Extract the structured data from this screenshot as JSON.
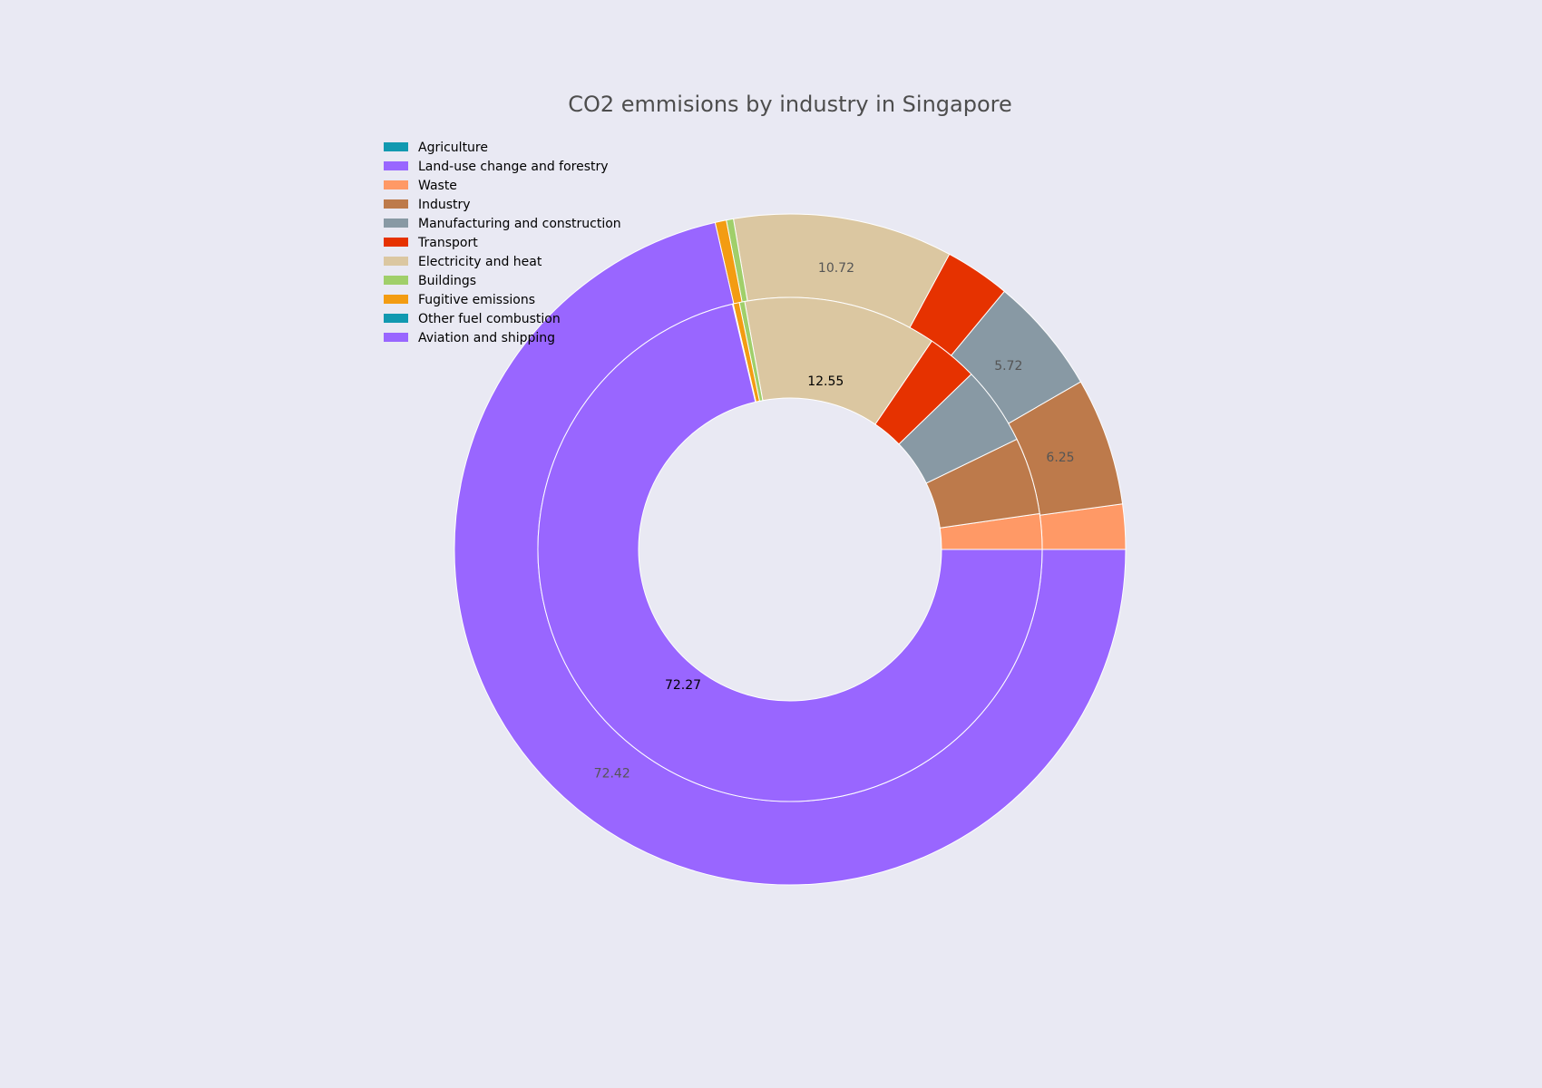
{
  "chart_data": {
    "type": "pie",
    "title": "CO2 emmisions by industry in Singapore",
    "legend_placement": "top-left",
    "legend": [
      {
        "label": "Agriculture",
        "color": "#1199b0"
      },
      {
        "label": "Land-use change and forestry",
        "color": "#9966ff"
      },
      {
        "label": "Waste",
        "color": "#ff9966"
      },
      {
        "label": "Industry",
        "color": "#bd7a4b"
      },
      {
        "label": "Manufacturing and construction",
        "color": "#8899a4"
      },
      {
        "label": "Transport",
        "color": "#e63200"
      },
      {
        "label": "Electricity and heat",
        "color": "#dbc7a1"
      },
      {
        "label": "Buildings",
        "color": "#a0cf6a"
      },
      {
        "label": "Fugitive emissions",
        "color": "#f39c12"
      },
      {
        "label": "Other fuel combustion",
        "color": "#1199b0"
      },
      {
        "label": "Aviation and shipping",
        "color": "#9966ff"
      }
    ],
    "outer_ring": [
      {
        "name": "Waste",
        "value": 2.2,
        "color": "#ff9966",
        "label": ""
      },
      {
        "name": "Industry",
        "value": 6.25,
        "color": "#bd7a4b",
        "label": "6.25"
      },
      {
        "name": "Manufacturing and construction",
        "value": 5.72,
        "color": "#8899a4",
        "label": "5.72"
      },
      {
        "name": "Transport",
        "value": 3.2,
        "color": "#e63200",
        "label": ""
      },
      {
        "name": "Electricity and heat",
        "value": 10.72,
        "color": "#dbc7a1",
        "label": "10.72"
      },
      {
        "name": "Buildings",
        "value": 0.35,
        "color": "#a0cf6a",
        "label": ""
      },
      {
        "name": "Fugitive emissions",
        "value": 0.55,
        "color": "#f39c12",
        "label": ""
      },
      {
        "name": "Aviation and shipping",
        "value": 72.42,
        "color": "#9966ff",
        "label": "72.42"
      }
    ],
    "inner_ring": [
      {
        "name": "Waste",
        "value": 2.3,
        "color": "#ff9966",
        "label": ""
      },
      {
        "name": "Industry",
        "value": 5.0,
        "color": "#bd7a4b",
        "label": ""
      },
      {
        "name": "Manufacturing and construction",
        "value": 5.1,
        "color": "#8899a4",
        "label": ""
      },
      {
        "name": "Transport",
        "value": 3.3,
        "color": "#e63200",
        "label": ""
      },
      {
        "name": "Electricity and heat",
        "value": 12.55,
        "color": "#dbc7a1",
        "label": "12.55"
      },
      {
        "name": "Buildings",
        "value": 0.35,
        "color": "#a0cf6a",
        "label": ""
      },
      {
        "name": "Fugitive emissions",
        "value": 0.4,
        "color": "#f39c12",
        "label": ""
      },
      {
        "name": "Land-use change and forestry",
        "value": 0.05,
        "color": "#9966ff",
        "label": ""
      },
      {
        "name": "Aviation and shipping",
        "value": 72.27,
        "color": "#9966ff",
        "label": "72.27"
      }
    ]
  }
}
